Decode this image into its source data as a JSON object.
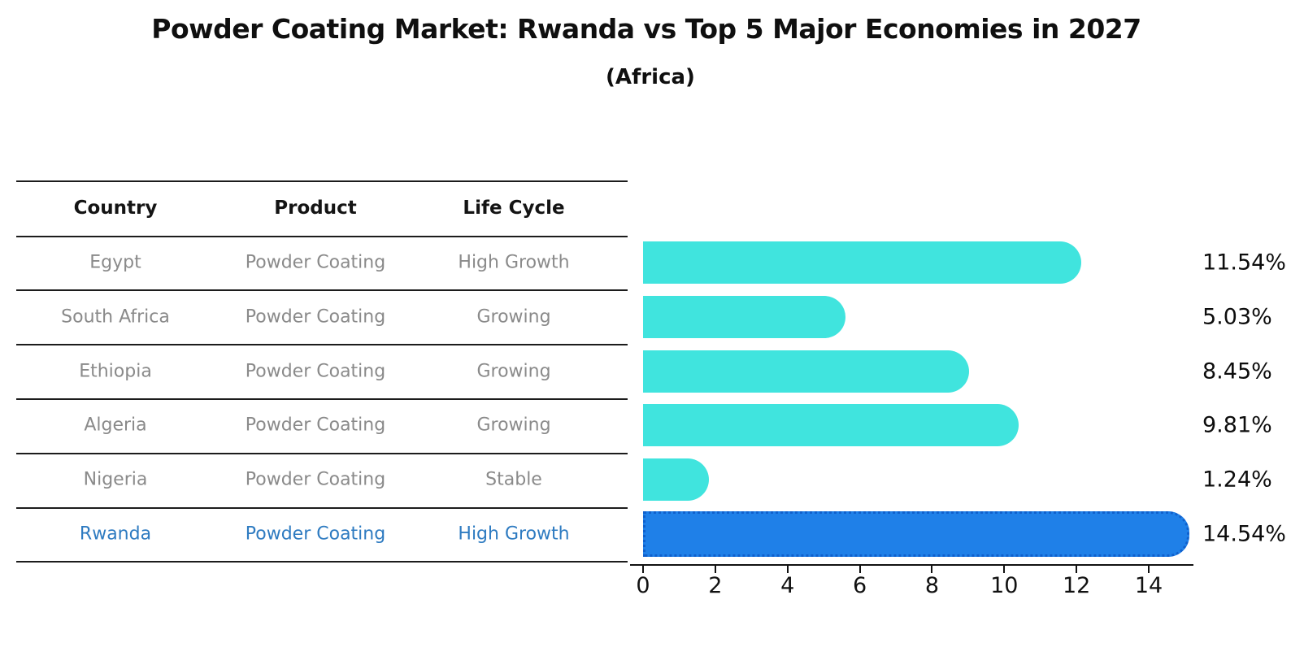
{
  "title": "Powder Coating Market: Rwanda vs Top 5 Major Economies in 2027",
  "subtitle": "(Africa)",
  "table": {
    "headers": [
      "Country",
      "Product",
      "Life Cycle"
    ],
    "rows": [
      {
        "country": "Egypt",
        "product": "Powder Coating",
        "life_cycle": "High Growth",
        "highlight": false
      },
      {
        "country": "South Africa",
        "product": "Powder Coating",
        "life_cycle": "Growing",
        "highlight": false
      },
      {
        "country": "Ethiopia",
        "product": "Powder Coating",
        "life_cycle": "Growing",
        "highlight": false
      },
      {
        "country": "Algeria",
        "product": "Powder Coating",
        "life_cycle": "Growing",
        "highlight": false
      },
      {
        "country": "Nigeria",
        "product": "Powder Coating",
        "life_cycle": "Stable",
        "highlight": false
      },
      {
        "country": "Rwanda",
        "product": "Powder Coating",
        "life_cycle": "High Growth",
        "highlight": true
      }
    ]
  },
  "chart_data": {
    "type": "bar",
    "orientation": "horizontal",
    "categories": [
      "Egypt",
      "South Africa",
      "Ethiopia",
      "Algeria",
      "Nigeria",
      "Rwanda"
    ],
    "values": [
      11.54,
      5.03,
      8.45,
      9.81,
      1.24,
      14.54
    ],
    "value_labels": [
      "11.54%",
      "5.03%",
      "8.45%",
      "9.81%",
      "1.24%",
      "14.54%"
    ],
    "highlight_index": 5,
    "xlabel": "",
    "ylabel": "",
    "xlim": [
      0,
      15.3
    ],
    "xticks": [
      0,
      2,
      4,
      6,
      8,
      10,
      12,
      14
    ],
    "grid": false,
    "legend": "none",
    "colors": {
      "bar_default": "#40e4de",
      "bar_highlight": "#1f80e8",
      "bar_highlight_border": "#1060cc",
      "highlight_text": "#2e7bc1",
      "row_text": "#8a8a8a",
      "header_text": "#141414",
      "axis_text": "#111111"
    }
  }
}
